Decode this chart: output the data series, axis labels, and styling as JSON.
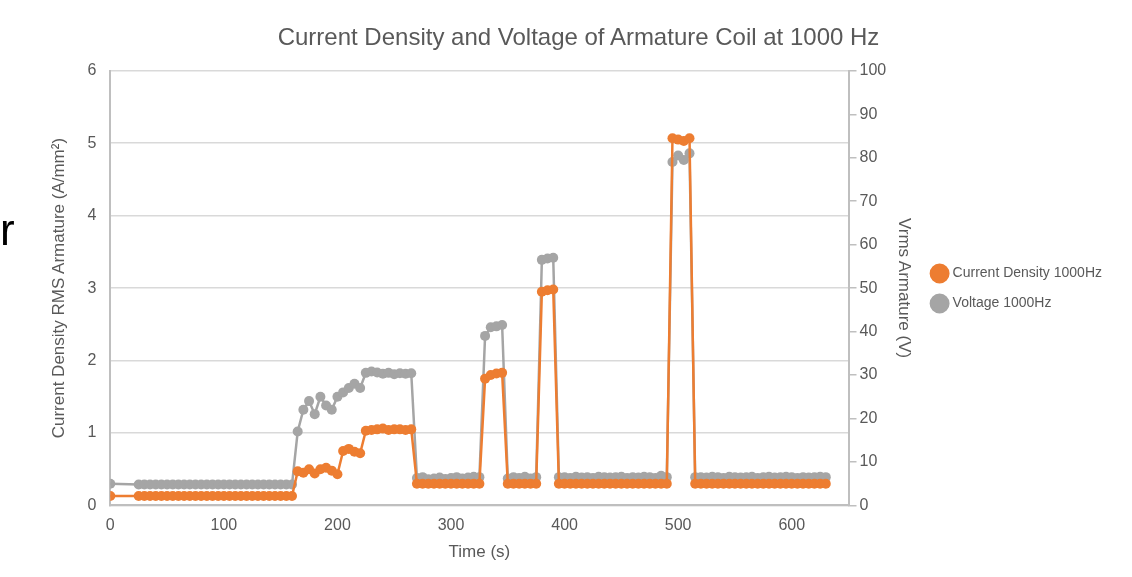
{
  "chart_data": {
    "type": "line",
    "title": "Current Density and Voltage of Armature Coil at 1000 Hz",
    "xlabel": "Time (s)",
    "ylabel": "Current Density RMS Armature (A/mm²)",
    "y2label": "Vrms Armature (V)",
    "x": [
      0,
      25,
      30,
      35,
      40,
      45,
      50,
      55,
      60,
      65,
      70,
      75,
      80,
      85,
      90,
      95,
      100,
      105,
      110,
      115,
      120,
      125,
      130,
      135,
      140,
      145,
      150,
      155,
      160,
      165,
      170,
      175,
      180,
      185,
      190,
      195,
      200,
      205,
      210,
      215,
      220,
      225,
      230,
      235,
      240,
      245,
      250,
      255,
      260,
      265,
      270,
      275,
      280,
      285,
      290,
      295,
      300,
      305,
      310,
      315,
      320,
      325,
      330,
      335,
      340,
      345,
      350,
      355,
      360,
      365,
      370,
      375,
      380,
      385,
      390,
      395,
      400,
      405,
      410,
      415,
      420,
      425,
      430,
      435,
      440,
      445,
      450,
      455,
      460,
      465,
      470,
      475,
      480,
      485,
      490,
      495,
      500,
      505,
      510,
      515,
      520,
      525,
      530,
      535,
      540,
      545,
      550,
      555,
      560,
      565,
      570,
      575,
      580,
      585,
      590,
      595,
      600,
      605,
      610,
      615,
      620,
      625,
      630
    ],
    "series": [
      {
        "name": "Current Density 1000Hz",
        "color": "#ed7d31",
        "values": [
          0.13,
          0.13,
          0.13,
          0.13,
          0.13,
          0.13,
          0.13,
          0.13,
          0.13,
          0.13,
          0.13,
          0.13,
          0.13,
          0.13,
          0.13,
          0.13,
          0.13,
          0.13,
          0.13,
          0.13,
          0.13,
          0.13,
          0.13,
          0.13,
          0.13,
          0.13,
          0.13,
          0.13,
          0.13,
          0.47,
          0.45,
          0.5,
          0.44,
          0.5,
          0.52,
          0.48,
          0.43,
          0.75,
          0.78,
          0.74,
          0.72,
          1.03,
          1.04,
          1.05,
          1.06,
          1.04,
          1.05,
          1.05,
          1.04,
          1.05,
          0.3,
          0.3,
          0.3,
          0.3,
          0.3,
          0.3,
          0.3,
          0.3,
          0.3,
          0.3,
          0.3,
          0.3,
          1.75,
          1.8,
          1.82,
          1.83,
          0.3,
          0.3,
          0.3,
          0.3,
          0.3,
          0.3,
          2.95,
          2.97,
          2.98,
          0.3,
          0.3,
          0.3,
          0.3,
          0.3,
          0.3,
          0.3,
          0.3,
          0.3,
          0.3,
          0.3,
          0.3,
          0.3,
          0.3,
          0.3,
          0.3,
          0.3,
          0.3,
          0.3,
          0.3,
          5.07,
          5.05,
          5.03,
          5.07,
          0.3,
          0.3,
          0.3,
          0.3,
          0.3,
          0.3,
          0.3,
          0.3,
          0.3,
          0.3,
          0.3,
          0.3,
          0.3,
          0.3,
          0.3,
          0.3,
          0.3,
          0.3,
          0.3,
          0.3,
          0.3,
          0.3,
          0.3,
          0.3
        ]
      },
      {
        "name": "Voltage 1000Hz",
        "color": "#a5a5a5",
        "axis": "y2",
        "values": [
          5,
          4.8,
          4.8,
          4.8,
          4.8,
          4.8,
          4.8,
          4.8,
          4.8,
          4.8,
          4.8,
          4.8,
          4.8,
          4.8,
          4.8,
          4.8,
          4.8,
          4.8,
          4.8,
          4.8,
          4.8,
          4.8,
          4.8,
          4.8,
          4.8,
          4.8,
          4.8,
          4.8,
          4.8,
          17,
          22,
          24,
          21,
          25,
          23,
          22,
          25,
          26,
          27,
          28,
          27,
          30.5,
          30.8,
          30.6,
          30.3,
          30.5,
          30.2,
          30.4,
          30.3,
          30.4,
          6.3,
          6.5,
          6,
          6.2,
          6.4,
          6.1,
          6.3,
          6.5,
          6.2,
          6.4,
          6.6,
          6.5,
          39,
          41,
          41.2,
          41.5,
          6.2,
          6.5,
          6.3,
          6.6,
          6.2,
          6.5,
          56.5,
          56.8,
          57,
          6.5,
          6.5,
          6.3,
          6.6,
          6.4,
          6.5,
          6.3,
          6.6,
          6.5,
          6.4,
          6.5,
          6.6,
          6.3,
          6.5,
          6.4,
          6.6,
          6.5,
          6.3,
          6.8,
          6.5,
          79,
          80.5,
          79.5,
          81,
          6.5,
          6.5,
          6.4,
          6.6,
          6.5,
          6.3,
          6.6,
          6.5,
          6.4,
          6.5,
          6.6,
          6.3,
          6.5,
          6.6,
          6.4,
          6.5,
          6.6,
          6.5,
          6.3,
          6.5,
          6.4,
          6.5,
          6.6,
          6.5
        ]
      }
    ],
    "xlim": [
      0,
      650
    ],
    "xticks": [
      0,
      100,
      200,
      300,
      400,
      500,
      600
    ],
    "ylim": [
      0,
      6
    ],
    "yticks": [
      0,
      1,
      2,
      3,
      4,
      5,
      6
    ],
    "y2lim": [
      0,
      100
    ],
    "y2ticks": [
      0,
      10,
      20,
      30,
      40,
      50,
      60,
      70,
      80,
      90,
      100
    ],
    "grid": "y",
    "legend": "right",
    "marker": "circle",
    "line_style": "solid",
    "annotations": [
      "r"
    ]
  }
}
